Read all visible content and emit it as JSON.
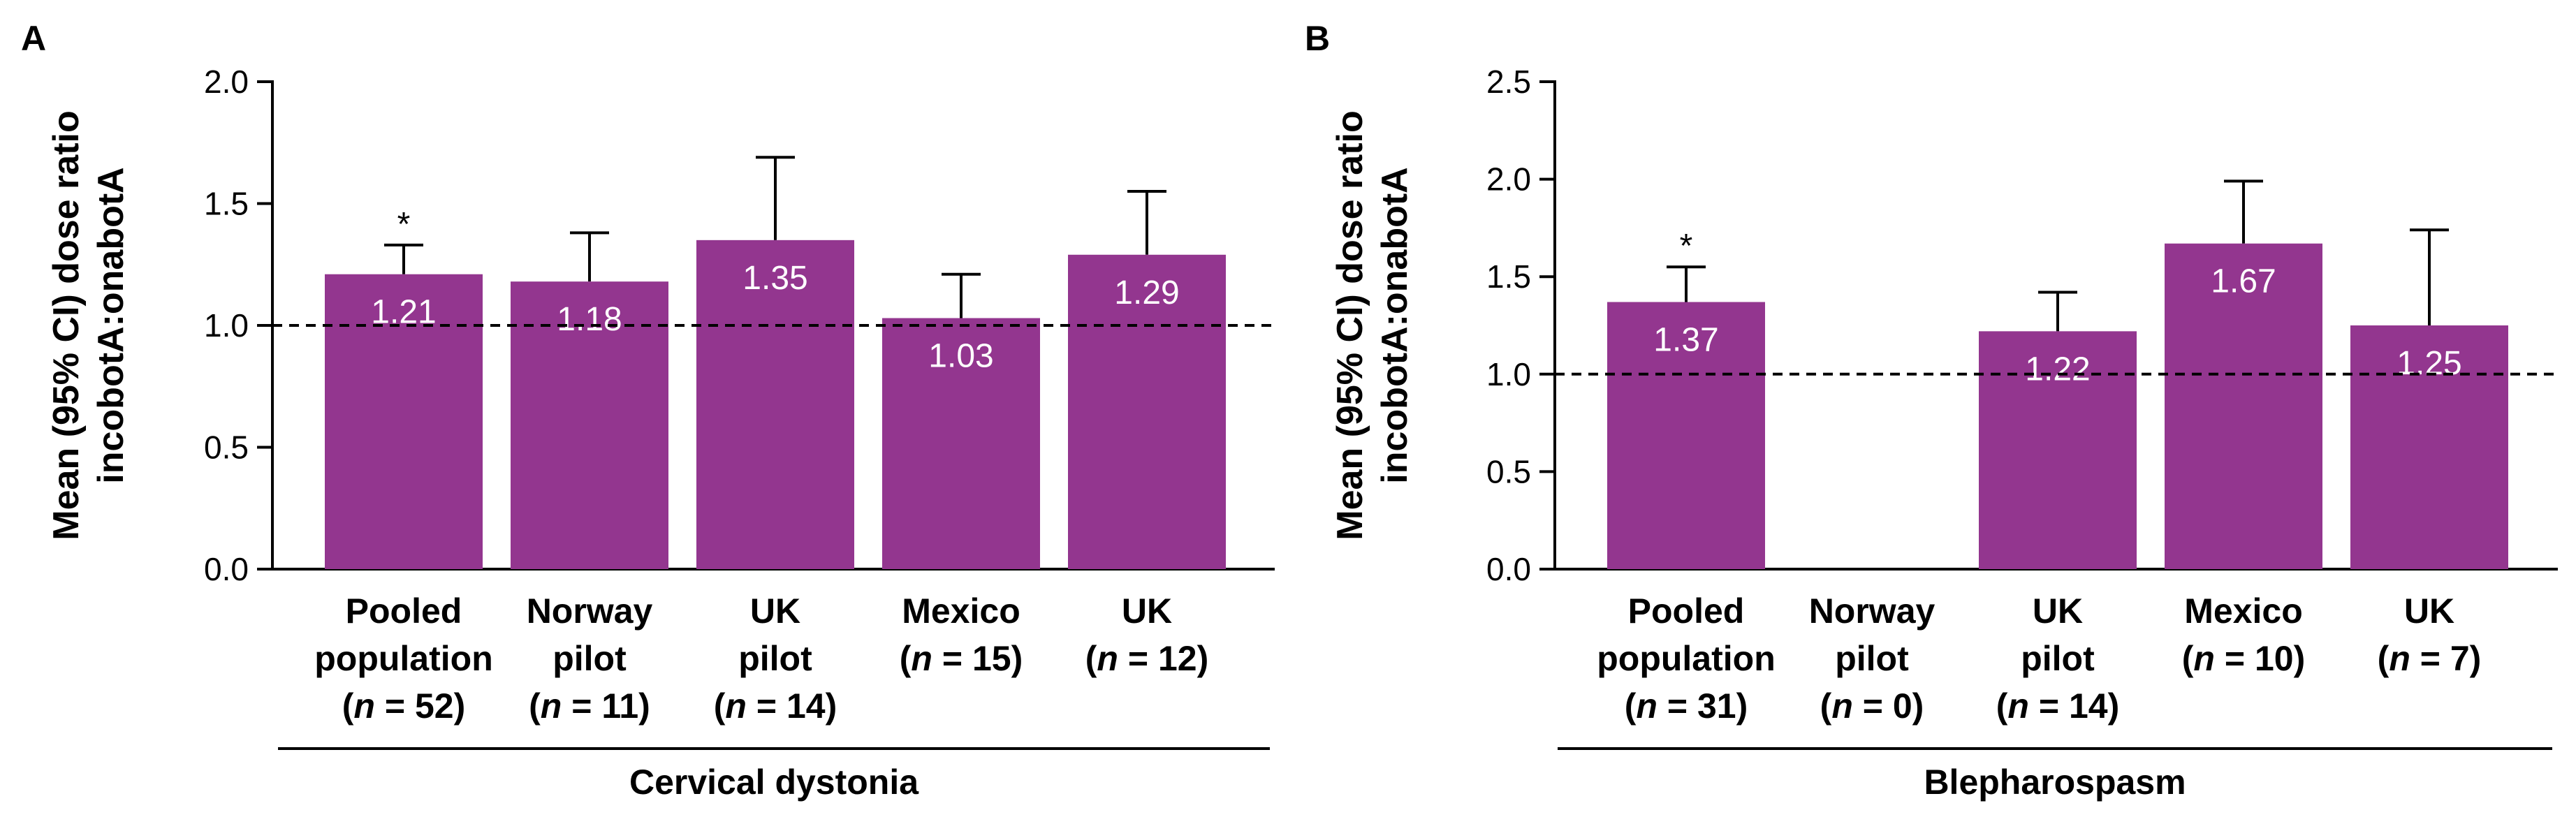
{
  "chart_data": [
    {
      "type": "bar",
      "panel_letter": "A",
      "title": "",
      "ylabel": [
        "Mean (95% CI) dose ratio",
        "incobotA:onabotA"
      ],
      "xlabel": "",
      "group_label": "Cervical dystonia",
      "ylim": [
        0,
        2.0
      ],
      "yticks": [
        "0.0",
        "0.5",
        "1.0",
        "1.5",
        "2.0"
      ],
      "reference_line": 1.0,
      "categories": [
        {
          "lines": [
            "Pooled",
            "population"
          ],
          "n_text": "(n = 52)",
          "n": 52,
          "value": 1.21,
          "ci_upper": 1.33,
          "value_label": "1.21",
          "annotation": "*"
        },
        {
          "lines": [
            "Norway",
            "pilot"
          ],
          "n_text": "(n = 11)",
          "n": 11,
          "value": 1.18,
          "ci_upper": 1.38,
          "value_label": "1.18",
          "annotation": ""
        },
        {
          "lines": [
            "UK",
            "pilot"
          ],
          "n_text": "(n = 14)",
          "n": 14,
          "value": 1.35,
          "ci_upper": 1.69,
          "value_label": "1.35",
          "annotation": ""
        },
        {
          "lines": [
            "Mexico"
          ],
          "n_text": "(n = 15)",
          "n": 15,
          "value": 1.03,
          "ci_upper": 1.21,
          "value_label": "1.03",
          "annotation": ""
        },
        {
          "lines": [
            "UK"
          ],
          "n_text": "(n = 12)",
          "n": 12,
          "value": 1.29,
          "ci_upper": 1.55,
          "value_label": "1.29",
          "annotation": ""
        }
      ],
      "bar_color": "#93368f"
    },
    {
      "type": "bar",
      "panel_letter": "B",
      "title": "",
      "ylabel": [
        "Mean (95% CI) dose ratio",
        "incobotA:onabotA"
      ],
      "xlabel": "",
      "group_label": "Blepharospasm",
      "ylim": [
        0,
        2.5
      ],
      "yticks": [
        "0.0",
        "0.5",
        "1.0",
        "1.5",
        "2.0",
        "2.5"
      ],
      "reference_line": 1.0,
      "categories": [
        {
          "lines": [
            "Pooled",
            "population"
          ],
          "n_text": "(n = 31)",
          "n": 31,
          "value": 1.37,
          "ci_upper": 1.55,
          "value_label": "1.37",
          "annotation": "*"
        },
        {
          "lines": [
            "Norway",
            "pilot"
          ],
          "n_text": "(n = 0)",
          "n": 0,
          "value": null,
          "ci_upper": null,
          "value_label": "",
          "annotation": ""
        },
        {
          "lines": [
            "UK",
            "pilot"
          ],
          "n_text": "(n = 14)",
          "n": 14,
          "value": 1.22,
          "ci_upper": 1.42,
          "value_label": "1.22",
          "annotation": ""
        },
        {
          "lines": [
            "Mexico"
          ],
          "n_text": "(n = 10)",
          "n": 10,
          "value": 1.67,
          "ci_upper": 1.99,
          "value_label": "1.67",
          "annotation": ""
        },
        {
          "lines": [
            "UK"
          ],
          "n_text": "(n = 7)",
          "n": 7,
          "value": 1.25,
          "ci_upper": 1.74,
          "value_label": "1.25",
          "annotation": ""
        }
      ],
      "bar_color": "#93368f"
    }
  ]
}
